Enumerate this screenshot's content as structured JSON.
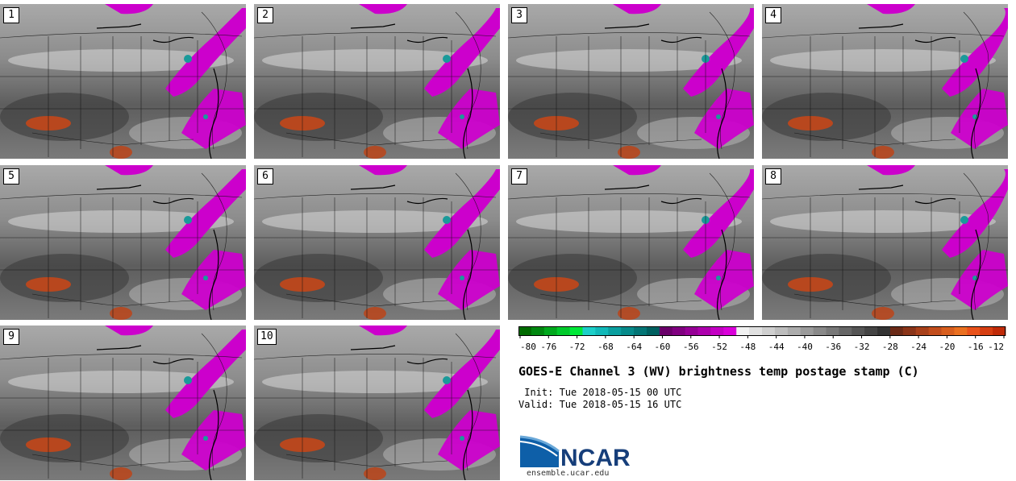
{
  "panels": [
    {
      "label": "1"
    },
    {
      "label": "2"
    },
    {
      "label": "3"
    },
    {
      "label": "4"
    },
    {
      "label": "5"
    },
    {
      "label": "6"
    },
    {
      "label": "7"
    },
    {
      "label": "8"
    },
    {
      "label": "9"
    },
    {
      "label": "10"
    }
  ],
  "colorbar": {
    "tick_labels": [
      "-80",
      "-76",
      "-72",
      "-68",
      "-64",
      "-60",
      "-56",
      "-52",
      "-48",
      "-44",
      "-40",
      "-36",
      "-32",
      "-28",
      "-24",
      "-20",
      "-16",
      "-12"
    ],
    "colors": [
      "#006b00",
      "#00870f",
      "#00a81c",
      "#00c92a",
      "#00e838",
      "#1ccfc8",
      "#11b8b8",
      "#0a9f9f",
      "#068a8a",
      "#037575",
      "#006060",
      "#6a006a",
      "#800080",
      "#960096",
      "#ad00ad",
      "#c400c4",
      "#da00da",
      "#f2f2f2",
      "#e0e0e0",
      "#cfcfcf",
      "#bdbdbd",
      "#acacac",
      "#9b9b9b",
      "#898989",
      "#787878",
      "#666666",
      "#555555",
      "#444444",
      "#333333",
      "#6b2a17",
      "#8a3418",
      "#a8401a",
      "#c24d1c",
      "#d85e1e",
      "#ea7020",
      "#e9521a",
      "#d63e12",
      "#c02a08"
    ]
  },
  "title": "GOES-E Channel 3 (WV) brightness temp postage stamp (C)",
  "init": " Init: Tue 2018-05-15 00 UTC",
  "valid": "Valid: Tue 2018-05-15 16 UTC",
  "logo": {
    "text": "NCAR",
    "url": "ensemble.ucar.edu"
  },
  "palette": {
    "magenta": "#cc00cc",
    "orange": "#b8471e",
    "cyan": "#1a9a9a"
  }
}
